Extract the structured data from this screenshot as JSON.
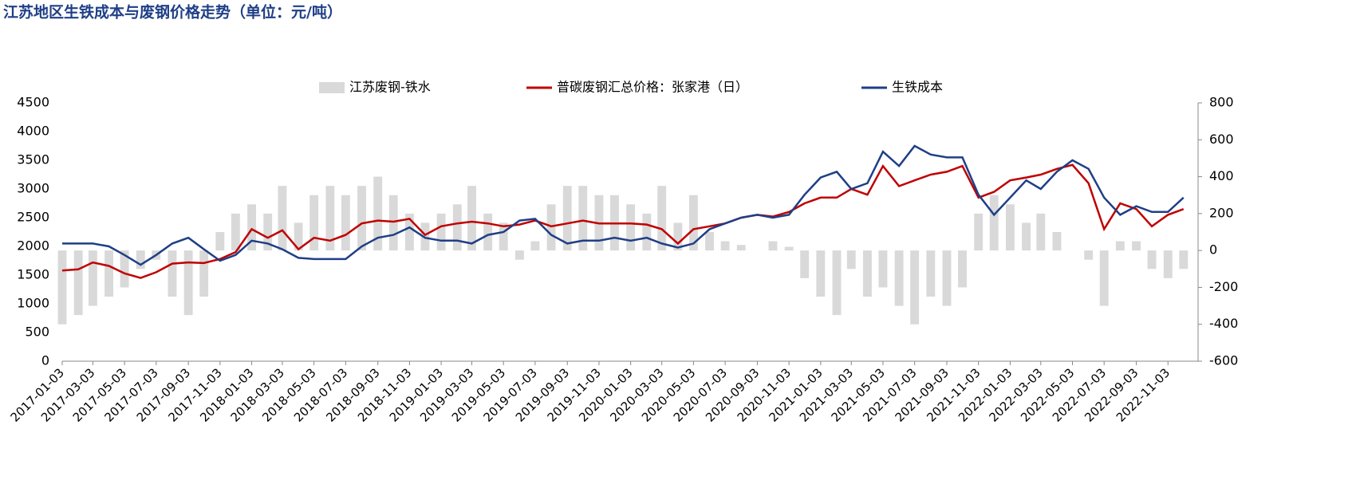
{
  "chart_data": {
    "type": "bar-line",
    "title": "江苏地区生铁成本与废钢价格走势（单位：元/吨）",
    "x": [
      "2017-01-03",
      "2017-02-03",
      "2017-03-03",
      "2017-04-03",
      "2017-05-03",
      "2017-06-03",
      "2017-07-03",
      "2017-08-03",
      "2017-09-03",
      "2017-10-03",
      "2017-11-03",
      "2017-12-03",
      "2018-01-03",
      "2018-02-03",
      "2018-03-03",
      "2018-04-03",
      "2018-05-03",
      "2018-06-03",
      "2018-07-03",
      "2018-08-03",
      "2018-09-03",
      "2018-10-03",
      "2018-11-03",
      "2018-12-03",
      "2019-01-03",
      "2019-02-03",
      "2019-03-03",
      "2019-04-03",
      "2019-05-03",
      "2019-06-03",
      "2019-07-03",
      "2019-08-03",
      "2019-09-03",
      "2019-10-03",
      "2019-11-03",
      "2019-12-03",
      "2020-01-03",
      "2020-02-03",
      "2020-03-03",
      "2020-04-03",
      "2020-05-03",
      "2020-06-03",
      "2020-07-03",
      "2020-08-03",
      "2020-09-03",
      "2020-10-03",
      "2020-11-03",
      "2020-12-03",
      "2021-01-03",
      "2021-02-03",
      "2021-03-03",
      "2021-04-03",
      "2021-05-03",
      "2021-06-03",
      "2021-07-03",
      "2021-08-03",
      "2021-09-03",
      "2021-10-03",
      "2021-11-03",
      "2021-12-03",
      "2022-01-03",
      "2022-02-03",
      "2022-03-03",
      "2022-04-03",
      "2022-05-03",
      "2022-06-03",
      "2022-07-03",
      "2022-08-03",
      "2022-09-03",
      "2022-10-03",
      "2022-11-03",
      "2022-12-03"
    ],
    "xlim": [
      "2017-01-03",
      "2022-12-31"
    ],
    "xticks": [
      "2017-01-03",
      "2017-03-03",
      "2017-05-03",
      "2017-07-03",
      "2017-09-03",
      "2017-11-03",
      "2018-01-03",
      "2018-03-03",
      "2018-05-03",
      "2018-07-03",
      "2018-09-03",
      "2018-11-03",
      "2019-01-03",
      "2019-03-03",
      "2019-05-03",
      "2019-07-03",
      "2019-09-03",
      "2019-11-03",
      "2020-01-03",
      "2020-03-03",
      "2020-05-03",
      "2020-07-03",
      "2020-09-03",
      "2020-11-03",
      "2021-01-03",
      "2021-03-03",
      "2021-05-03",
      "2021-07-03",
      "2021-09-03",
      "2021-11-03",
      "2022-01-03",
      "2022-03-03",
      "2022-05-03",
      "2022-07-03",
      "2022-09-03",
      "2022-11-03"
    ],
    "ylim": [
      0,
      4500
    ],
    "yticks": [
      0,
      500,
      1000,
      1500,
      2000,
      2500,
      3000,
      3500,
      4000,
      4500
    ],
    "y2lim": [
      -600,
      800
    ],
    "y2ticks": [
      -600,
      -400,
      -200,
      0,
      200,
      400,
      600,
      800
    ],
    "series": [
      {
        "name": "江苏废钢-铁水",
        "color": "#d9d9d9",
        "axis": "y2",
        "kind": "bar",
        "values": [
          -400,
          -350,
          -300,
          -250,
          -200,
          -100,
          -50,
          -250,
          -350,
          -250,
          100,
          200,
          250,
          200,
          350,
          150,
          300,
          350,
          300,
          350,
          400,
          300,
          200,
          150,
          200,
          250,
          350,
          200,
          150,
          -50,
          50,
          250,
          350,
          350,
          300,
          300,
          250,
          200,
          350,
          150,
          300,
          100,
          50,
          30,
          0,
          50,
          20,
          -150,
          -250,
          -350,
          -100,
          -250,
          -200,
          -300,
          -400,
          -250,
          -300,
          -200,
          200,
          300,
          250,
          150,
          200,
          100,
          0,
          -50,
          -300,
          50,
          50,
          -100,
          -150,
          -100
        ]
      },
      {
        "name": "普碳废钢汇总价格：张家港（日）",
        "color": "#c00000",
        "kind": "line",
        "values": [
          1580,
          1600,
          1720,
          1660,
          1530,
          1450,
          1550,
          1700,
          1720,
          1710,
          1780,
          1900,
          2300,
          2150,
          2280,
          1950,
          2150,
          2100,
          2200,
          2400,
          2450,
          2430,
          2480,
          2200,
          2350,
          2400,
          2430,
          2400,
          2350,
          2380,
          2450,
          2350,
          2400,
          2450,
          2400,
          2400,
          2400,
          2380,
          2300,
          2050,
          2300,
          2350,
          2400,
          2500,
          2550,
          2520,
          2600,
          2750,
          2850,
          2850,
          3000,
          2900,
          3400,
          3050,
          3150,
          3250,
          3300,
          3400,
          2850,
          2950,
          3150,
          3200,
          3250,
          3350,
          3420,
          3100,
          2300,
          2750,
          2650,
          2350,
          2550,
          2650
        ]
      },
      {
        "name": "生铁成本",
        "color": "#1f3f86",
        "kind": "line",
        "values": [
          2050,
          2050,
          2050,
          2000,
          1850,
          1680,
          1850,
          2050,
          2150,
          1950,
          1750,
          1850,
          2100,
          2050,
          1950,
          1800,
          1780,
          1780,
          1780,
          2000,
          2150,
          2200,
          2330,
          2150,
          2100,
          2100,
          2050,
          2200,
          2250,
          2450,
          2480,
          2200,
          2050,
          2100,
          2100,
          2150,
          2100,
          2150,
          2050,
          1980,
          2050,
          2300,
          2400,
          2500,
          2550,
          2500,
          2550,
          2900,
          3200,
          3300,
          3000,
          3100,
          3650,
          3400,
          3750,
          3600,
          3550,
          3550,
          2900,
          2550,
          2850,
          3150,
          3000,
          3300,
          3500,
          3350,
          2850,
          2550,
          2700,
          2600,
          2600,
          2850
        ]
      }
    ]
  }
}
